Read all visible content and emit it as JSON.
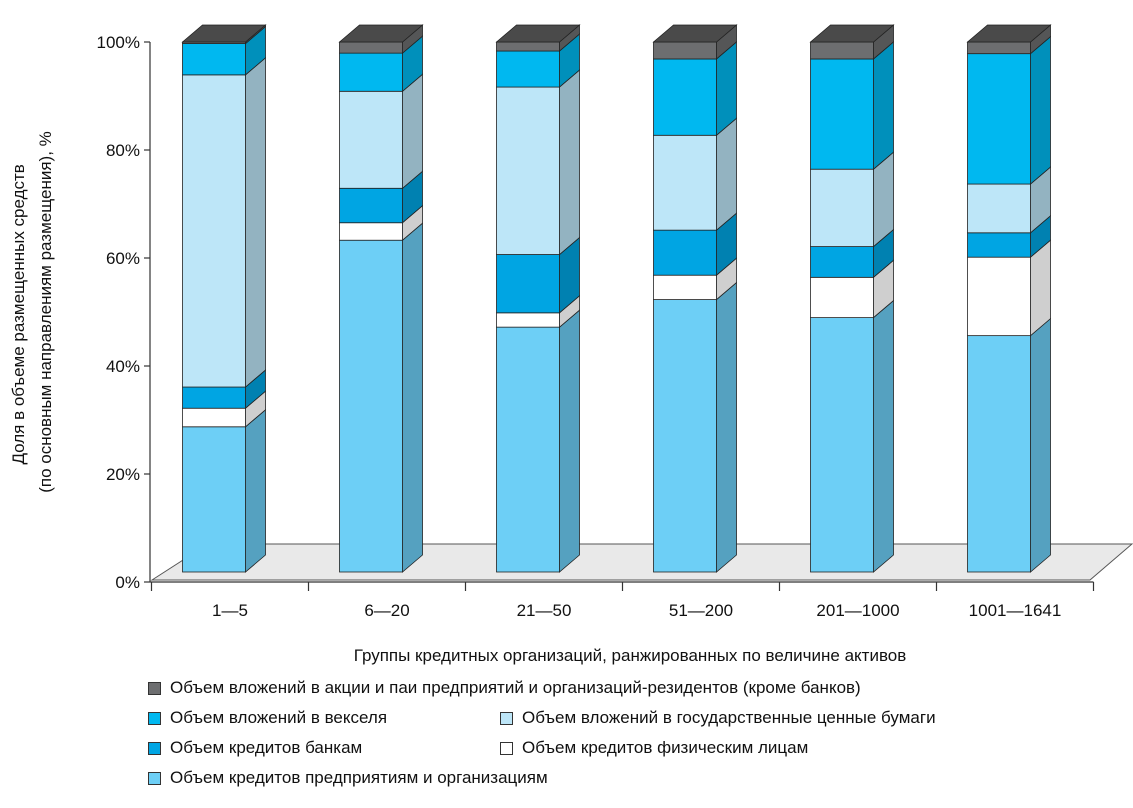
{
  "chart_data": {
    "type": "bar",
    "stacked": true,
    "three_d": true,
    "xlabel": "Группы кредитных организаций, ранжированных по величине активов",
    "ylabel_line1": "Доля в объеме размещенных средств",
    "ylabel_line2": "(по основным направлениям размещения), %",
    "ylim": [
      0,
      100
    ],
    "y_ticks": [
      "0%",
      "20%",
      "40%",
      "60%",
      "80%",
      "100%"
    ],
    "y_tick_values": [
      0,
      20,
      40,
      60,
      80,
      100
    ],
    "categories": [
      "1—5",
      "6—20",
      "21—50",
      "51—200",
      "201—1000",
      "1001—1641"
    ],
    "series": [
      {
        "name": "Объем кредитов предприятиям и организациям",
        "color": "#6dcff6",
        "values": [
          27.4,
          62.6,
          46.2,
          51.4,
          48.0,
          44.6
        ]
      },
      {
        "name": "Объем кредитов физическим лицам",
        "color": "#ffffff",
        "values": [
          3.5,
          3.3,
          2.7,
          4.6,
          7.6,
          14.8
        ]
      },
      {
        "name": "Объем кредитов банкам",
        "color": "#00a5e3",
        "values": [
          4.0,
          6.5,
          11.0,
          8.5,
          5.8,
          4.6
        ]
      },
      {
        "name": "Объем вложений в государственные ценные бумаги",
        "color": "#bde6f8",
        "values": [
          58.9,
          18.3,
          31.6,
          17.9,
          14.6,
          9.2
        ]
      },
      {
        "name": "Объем вложений в векселя",
        "color": "#00b8f0",
        "values": [
          5.9,
          7.2,
          6.8,
          14.4,
          20.8,
          24.6
        ]
      },
      {
        "name": "Объем вложений в акции и паи предприятий и организаций-резидентов (кроме банков)",
        "color": "#6d6e70",
        "values": [
          0.3,
          2.1,
          1.7,
          3.2,
          3.2,
          2.2
        ]
      }
    ],
    "grid": false,
    "legend_position": "bottom"
  }
}
